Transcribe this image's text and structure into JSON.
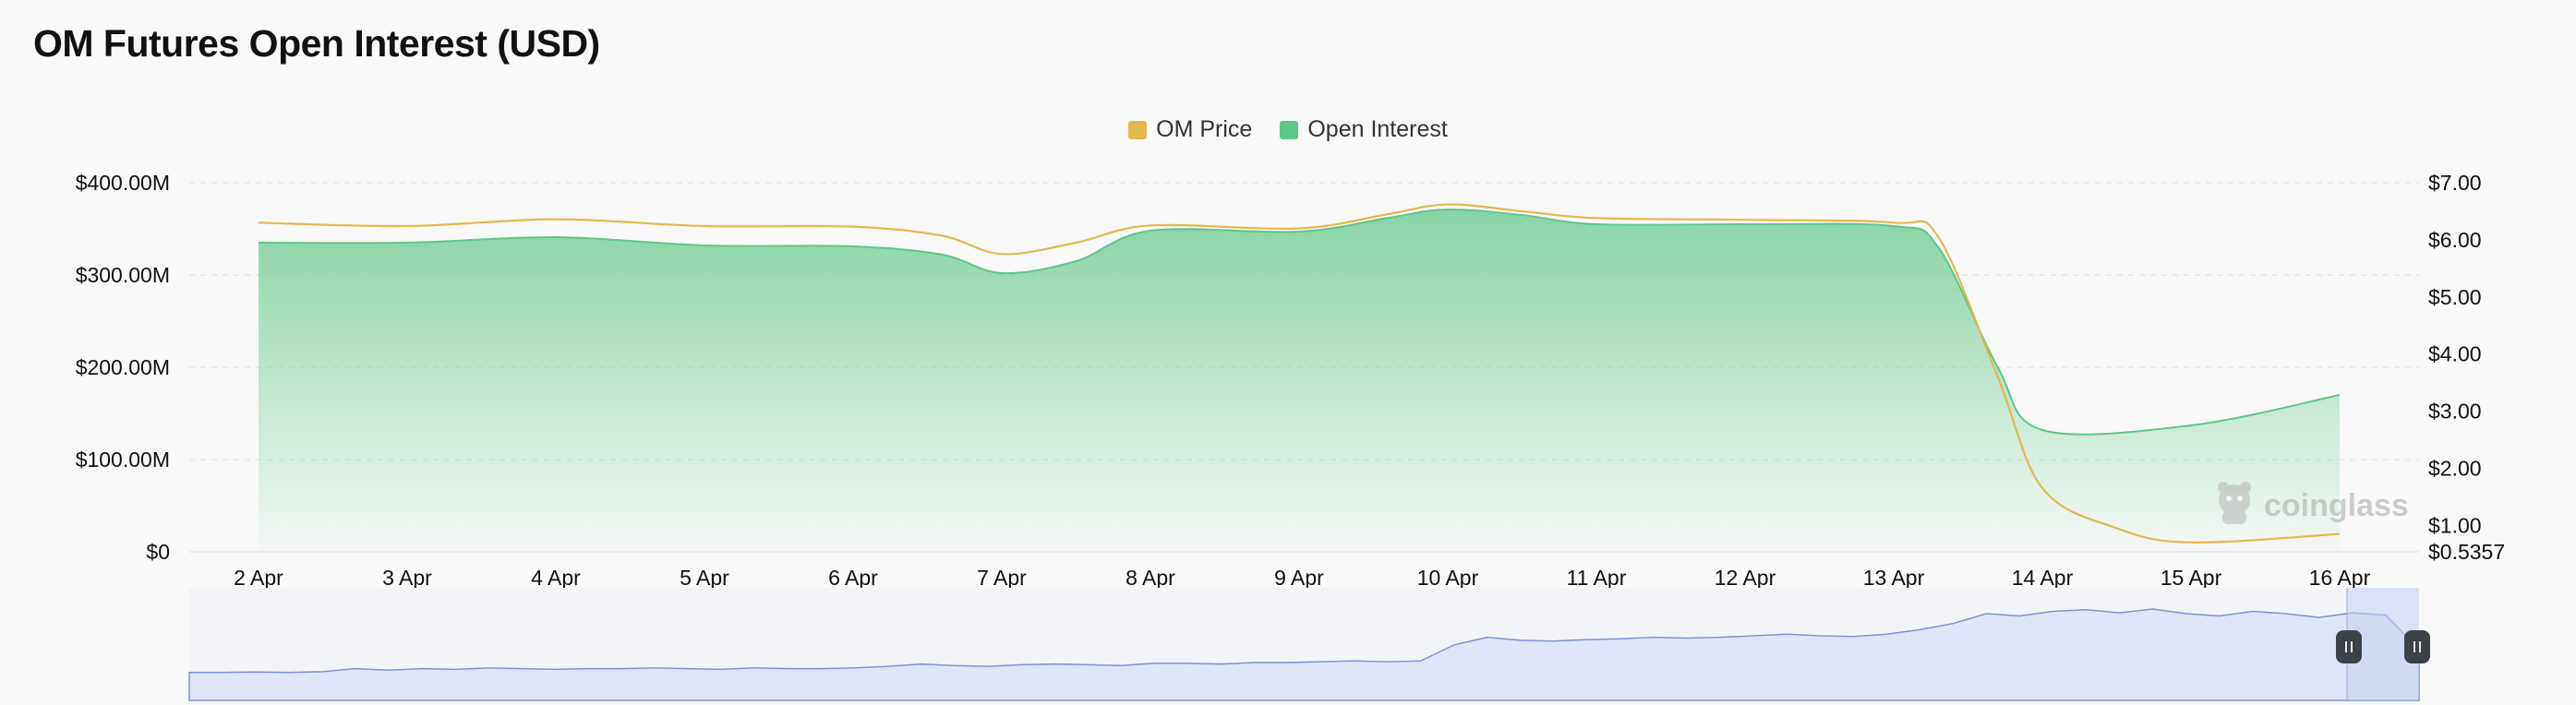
{
  "chart_data": {
    "type": "area",
    "title": "OM Futures Open Interest (USD)",
    "categories": [
      "2 Apr",
      "3 Apr",
      "4 Apr",
      "5 Apr",
      "6 Apr",
      "7 Apr",
      "8 Apr",
      "9 Apr",
      "10 Apr",
      "11 Apr",
      "12 Apr",
      "13 Apr",
      "14 Apr",
      "15 Apr",
      "16 Apr"
    ],
    "series": [
      {
        "name": "Open Interest",
        "axis": "left",
        "color": "#5fc68a",
        "x": [
          0,
          1,
          2,
          3,
          4,
          4.6,
          5,
          5.5,
          6,
          7,
          7.6,
          8,
          8.5,
          9,
          10,
          11,
          11.3,
          11.7,
          12,
          13,
          14
        ],
        "values": [
          335,
          335,
          341,
          332,
          331,
          322,
          302,
          315,
          348,
          347,
          362,
          371,
          365,
          355,
          355,
          353,
          330,
          200,
          132,
          137,
          170
        ]
      },
      {
        "name": "OM Price",
        "axis": "right",
        "color": "#e5b84f",
        "x": [
          0,
          1,
          2,
          3,
          4,
          4.6,
          5,
          5.5,
          6,
          7,
          7.6,
          8,
          8.5,
          9,
          10,
          11,
          11.3,
          11.7,
          12,
          12.5,
          13,
          14
        ],
        "values": [
          6.3,
          6.24,
          6.36,
          6.24,
          6.23,
          6.07,
          5.75,
          5.95,
          6.25,
          6.2,
          6.45,
          6.62,
          6.5,
          6.38,
          6.35,
          6.3,
          6.05,
          3.6,
          1.65,
          0.95,
          0.7,
          0.85
        ]
      }
    ],
    "y_left": {
      "ticks": [
        "$0",
        "$100.00M",
        "$200.00M",
        "$300.00M",
        "$400.00M"
      ],
      "tick_values": [
        0,
        100,
        200,
        300,
        400
      ],
      "range": [
        0,
        400
      ]
    },
    "y_right": {
      "ticks": [
        "$0.5357",
        "$1.00",
        "$2.00",
        "$3.00",
        "$4.00",
        "$5.00",
        "$6.00",
        "$7.00"
      ],
      "tick_values": [
        0.5357,
        1,
        2,
        3,
        4,
        5,
        6,
        7
      ],
      "range": [
        0.5357,
        7
      ]
    },
    "grid": true,
    "legend": "top-center",
    "watermark": "coinglass"
  },
  "colors": {
    "oi_color": "#5fc68a",
    "price_color": "#e5b84f",
    "navigator_color": "#7f91d6"
  },
  "navigator": {
    "values": [
      10,
      10,
      10.5,
      10,
      11,
      15,
      13,
      15,
      14,
      16,
      15,
      14,
      15,
      15,
      16,
      15,
      14,
      16,
      15,
      15,
      16,
      18,
      21,
      19,
      18,
      20,
      21,
      20,
      19,
      22,
      22,
      21,
      23,
      23,
      24,
      25,
      24,
      25,
      46,
      56,
      52,
      51,
      53,
      54,
      56,
      55,
      56,
      58,
      60,
      58,
      57,
      60,
      66,
      74,
      87,
      84,
      90,
      92,
      88,
      93,
      87,
      84,
      90,
      87,
      82,
      88,
      85,
      40
    ]
  }
}
